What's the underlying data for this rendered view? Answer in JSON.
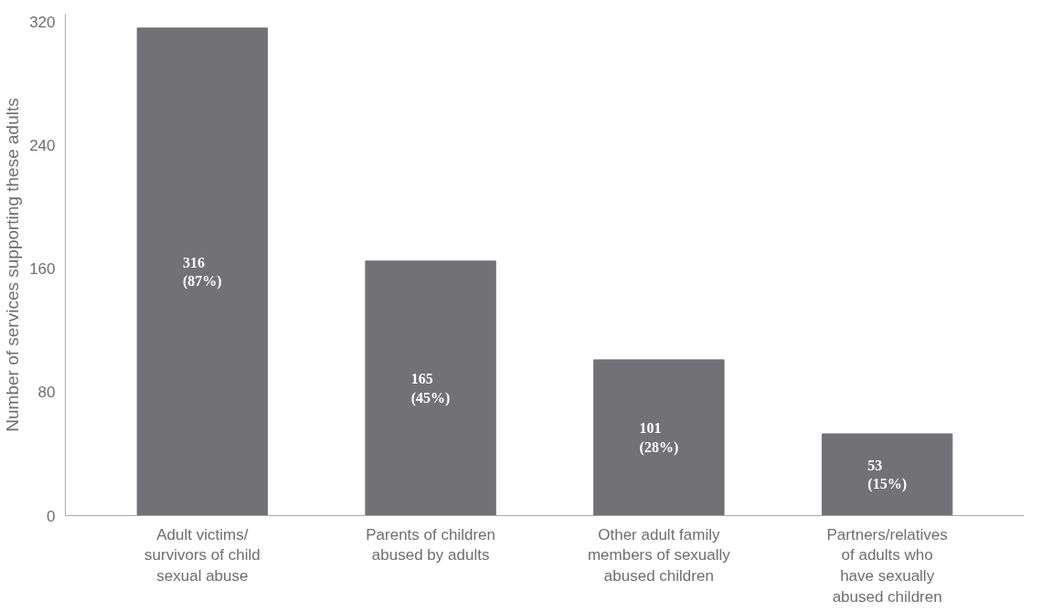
{
  "chart_data": {
    "type": "bar",
    "ylabel": "Number of services supporting these adults",
    "categories": [
      "Adult victims/\nsurvivors of child\nsexual abuse",
      "Parents of children\nabused by adults",
      "Other adult family\nmembers of sexually\nabused children",
      "Partners/relatives\nof adults who\nhave sexually\nabused children"
    ],
    "values": [
      316,
      165,
      101,
      53
    ],
    "value_labels": [
      "316\n(87%)",
      "165\n(45%)",
      "101\n(28%)",
      "53\n(15%)"
    ],
    "color": "#727276",
    "ylim": [
      0,
      325
    ],
    "yticks": [
      0,
      80,
      160,
      240,
      320
    ],
    "grid": false
  }
}
